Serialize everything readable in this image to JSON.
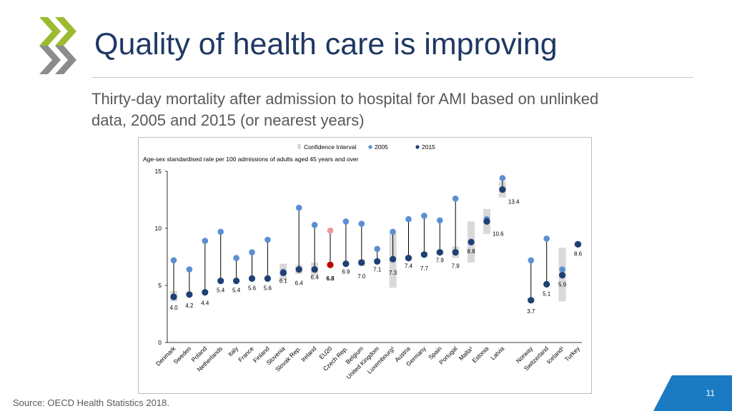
{
  "slide": {
    "title": "Quality of health care is improving",
    "subtitle": "Thirty-day mortality after admission to hospital for AMI based on unlinked data, 2005 and 2015 (or nearest years)",
    "source": "Source: OECD Health Statistics 2018.",
    "page_number": "11",
    "logo_icon": "oecd-chevron-logo-icon"
  },
  "colors": {
    "title": "#1f3864",
    "dot_2005": "#5b8fd1",
    "dot_2015": "#1f3f75",
    "dot_eu20_2005": "#e89a9a",
    "dot_eu20_2015": "#c00000",
    "ci_bar": "#d9d9d9",
    "logo_green": "#9bbb30",
    "logo_gray": "#8c8c8c",
    "accent": "#1b7bc2"
  },
  "chart_data": {
    "type": "dot-range",
    "title": "Age-sex standardised rate per 100 admissions of adults aged 45 years and over",
    "legend": [
      "Confidence Interval",
      "2005",
      "2015"
    ],
    "legend_position": "top",
    "ylim": [
      0,
      15
    ],
    "yticks": [
      "0",
      "5",
      "10",
      "15"
    ],
    "groups": [
      [
        {
          "country": "Denmark",
          "sup": "",
          "v2005": 7.2,
          "v2015": 4.0,
          "ci": [
            3.6,
            4.5
          ],
          "label": "4.0",
          "bold": false
        },
        {
          "country": "Sweden",
          "sup": "",
          "v2005": 6.4,
          "v2015": 4.2,
          "ci": null,
          "label": "4.2",
          "bold": false
        },
        {
          "country": "Poland",
          "sup": "",
          "v2005": 8.9,
          "v2015": 4.4,
          "ci": null,
          "label": "4.4",
          "bold": false
        },
        {
          "country": "Netherlands",
          "sup": "",
          "v2005": 9.7,
          "v2015": 5.4,
          "ci": null,
          "label": "5.4",
          "bold": false
        },
        {
          "country": "Italy",
          "sup": "",
          "v2005": 7.4,
          "v2015": 5.4,
          "ci": null,
          "label": "5.4",
          "bold": false
        },
        {
          "country": "France",
          "sup": "",
          "v2005": 7.9,
          "v2015": 5.6,
          "ci": null,
          "label": "5.6",
          "bold": false
        },
        {
          "country": "Finland",
          "sup": "",
          "v2005": 9.0,
          "v2015": 5.6,
          "ci": null,
          "label": "5.6",
          "bold": false
        },
        {
          "country": "Slovenia",
          "sup": "",
          "v2005": 6.2,
          "v2015": 6.1,
          "ci": [
            5.4,
            6.9
          ],
          "label": "6.1",
          "bold": false
        },
        {
          "country": "Slovak Rep.",
          "sup": "",
          "v2005": 11.8,
          "v2015": 6.4,
          "ci": [
            6.0,
            6.8
          ],
          "label": "6.4",
          "bold": false
        },
        {
          "country": "Ireland",
          "sup": "",
          "v2005": 10.3,
          "v2015": 6.4,
          "ci": [
            5.8,
            7.0
          ],
          "label": "6.4",
          "bold": false
        },
        {
          "country": "EU20",
          "sup": "",
          "v2005": 9.8,
          "v2015": 6.8,
          "ci": null,
          "label": "6.8",
          "bold": true
        },
        {
          "country": "Czech Rep.",
          "sup": "",
          "v2005": 10.6,
          "v2015": 6.9,
          "ci": null,
          "label": "6.9",
          "bold": false
        },
        {
          "country": "Belgium",
          "sup": "",
          "v2005": 10.4,
          "v2015": 7.0,
          "ci": [
            6.7,
            7.3
          ],
          "label": "7.0",
          "bold": false
        },
        {
          "country": "United Kingdom",
          "sup": "",
          "v2005": 8.2,
          "v2015": 7.1,
          "ci": null,
          "label": "7.1",
          "bold": false
        },
        {
          "country": "Luxembourg",
          "sup": "1",
          "v2005": 9.7,
          "v2015": 7.3,
          "ci": [
            4.8,
            9.6
          ],
          "label": "7.3",
          "bold": false
        },
        {
          "country": "Austria",
          "sup": "",
          "v2005": 10.8,
          "v2015": 7.4,
          "ci": [
            7.2,
            7.6
          ],
          "label": "7.4",
          "bold": false
        },
        {
          "country": "Germany",
          "sup": "",
          "v2005": 11.1,
          "v2015": 7.7,
          "ci": [
            7.5,
            7.9
          ],
          "label": "7.7",
          "bold": false
        },
        {
          "country": "Spain",
          "sup": "",
          "v2005": 10.7,
          "v2015": 7.9,
          "ci": [
            7.7,
            8.1
          ],
          "label": "7.9",
          "bold": false
        },
        {
          "country": "Portugal",
          "sup": "",
          "v2005": 12.6,
          "v2015": 7.9,
          "ci": [
            7.4,
            8.4
          ],
          "label": "7.9",
          "bold": false
        },
        {
          "country": "Malta",
          "sup": "1",
          "v2005": null,
          "v2015": 8.8,
          "ci": [
            7.0,
            10.6
          ],
          "label": "8.8",
          "bold": false
        },
        {
          "country": "Estonia",
          "sup": "",
          "v2005": 10.8,
          "v2015": 10.6,
          "ci": [
            9.5,
            11.7
          ],
          "label": "10.6",
          "bold": false
        },
        {
          "country": "Latvia",
          "sup": "",
          "v2005": 14.4,
          "v2015": 13.4,
          "ci": [
            12.7,
            14.1
          ],
          "label": "13.4",
          "bold": false
        }
      ],
      [
        {
          "country": "Norway",
          "sup": "",
          "v2005": 7.2,
          "v2015": 3.7,
          "ci": [
            3.5,
            3.9
          ],
          "label": "3.7",
          "bold": false
        },
        {
          "country": "Switzerland",
          "sup": "",
          "v2005": 9.1,
          "v2015": 5.1,
          "ci": null,
          "label": "5.1",
          "bold": false
        },
        {
          "country": "Iceland",
          "sup": "1",
          "v2005": 6.4,
          "v2015": 5.9,
          "ci": [
            3.6,
            8.3
          ],
          "label": "5.9",
          "bold": false
        },
        {
          "country": "Turkey",
          "sup": "",
          "v2005": null,
          "v2015": 8.6,
          "ci": [
            8.4,
            8.8
          ],
          "label": "8.6",
          "bold": false
        }
      ]
    ]
  }
}
